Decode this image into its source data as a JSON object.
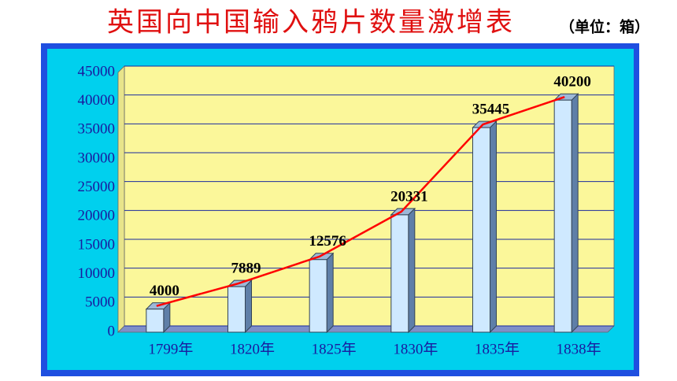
{
  "chart_data": {
    "type": "bar",
    "title": "英国向中国输入鸦片数量激增表",
    "subtitle": "（单位：箱）",
    "categories": [
      "1799年",
      "1820年",
      "1825年",
      "1830年",
      "1835年",
      "1838年"
    ],
    "values": [
      4000,
      7889,
      12576,
      20331,
      35445,
      40200
    ],
    "color": "#cfe9ff",
    "line_color": "#ff0000",
    "ylim": [
      0,
      45000
    ],
    "yticks": [
      0,
      5000,
      10000,
      15000,
      20000,
      25000,
      30000,
      35000,
      40000,
      45000
    ],
    "grid": true
  }
}
